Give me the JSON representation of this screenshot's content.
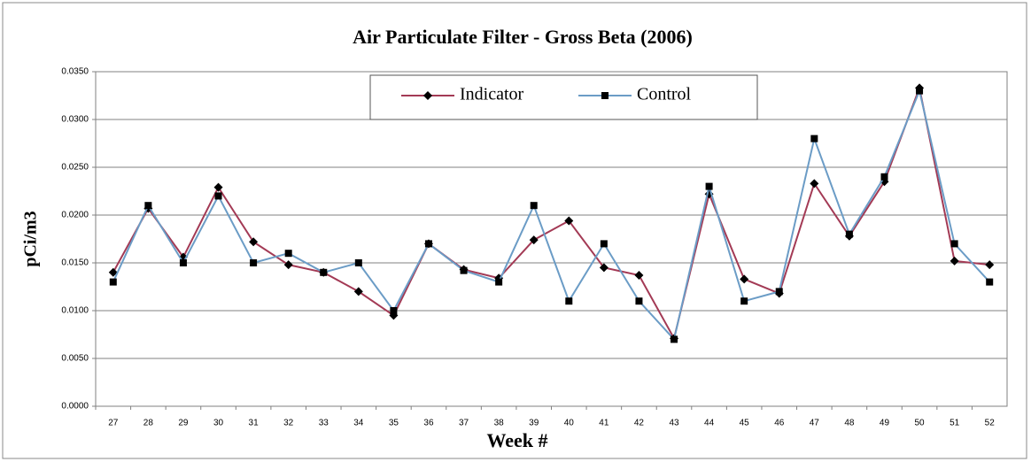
{
  "chart_data": {
    "type": "line",
    "title": "Air Particulate Filter - Gross Beta (2006)",
    "x_label": "Week #",
    "y_label": "pCi/m3",
    "categories": [
      "27",
      "28",
      "29",
      "30",
      "31",
      "32",
      "33",
      "34",
      "35",
      "36",
      "37",
      "38",
      "39",
      "40",
      "41",
      "42",
      "43",
      "44",
      "45",
      "46",
      "47",
      "48",
      "49",
      "50",
      "51",
      "52"
    ],
    "series": [
      {
        "name": "Indicator",
        "color": "#a33a55",
        "marker": "diamond",
        "values": [
          0.014,
          0.0207,
          0.0156,
          0.0229,
          0.0172,
          0.0148,
          0.014,
          0.012,
          0.0095,
          0.017,
          0.0143,
          0.0134,
          0.0174,
          0.0194,
          0.0145,
          0.0137,
          0.0071,
          0.0222,
          0.0133,
          0.0118,
          0.0233,
          0.0178,
          0.0235,
          0.0333,
          0.0152,
          0.0148
        ]
      },
      {
        "name": "Control",
        "color": "#6b9cc6",
        "marker": "square",
        "values": [
          0.013,
          0.021,
          0.015,
          0.022,
          0.015,
          0.016,
          0.014,
          0.015,
          0.01,
          0.017,
          0.0142,
          0.013,
          0.021,
          0.011,
          0.017,
          0.011,
          0.007,
          0.023,
          0.011,
          0.012,
          0.028,
          0.018,
          0.024,
          0.033,
          0.017,
          0.013
        ]
      }
    ],
    "ylim": [
      0,
      0.035
    ],
    "yticks": [
      {
        "value": 0,
        "label": "0.0000"
      },
      {
        "value": 0.005,
        "label": "0.0050"
      },
      {
        "value": 0.01,
        "label": "0.0100"
      },
      {
        "value": 0.015,
        "label": "0.0150"
      },
      {
        "value": 0.02,
        "label": "0.0200"
      },
      {
        "value": 0.025,
        "label": "0.0250"
      },
      {
        "value": 0.03,
        "label": "0.0300"
      },
      {
        "value": 0.035,
        "label": "0.0350"
      }
    ],
    "grid": true,
    "legend": "top"
  }
}
